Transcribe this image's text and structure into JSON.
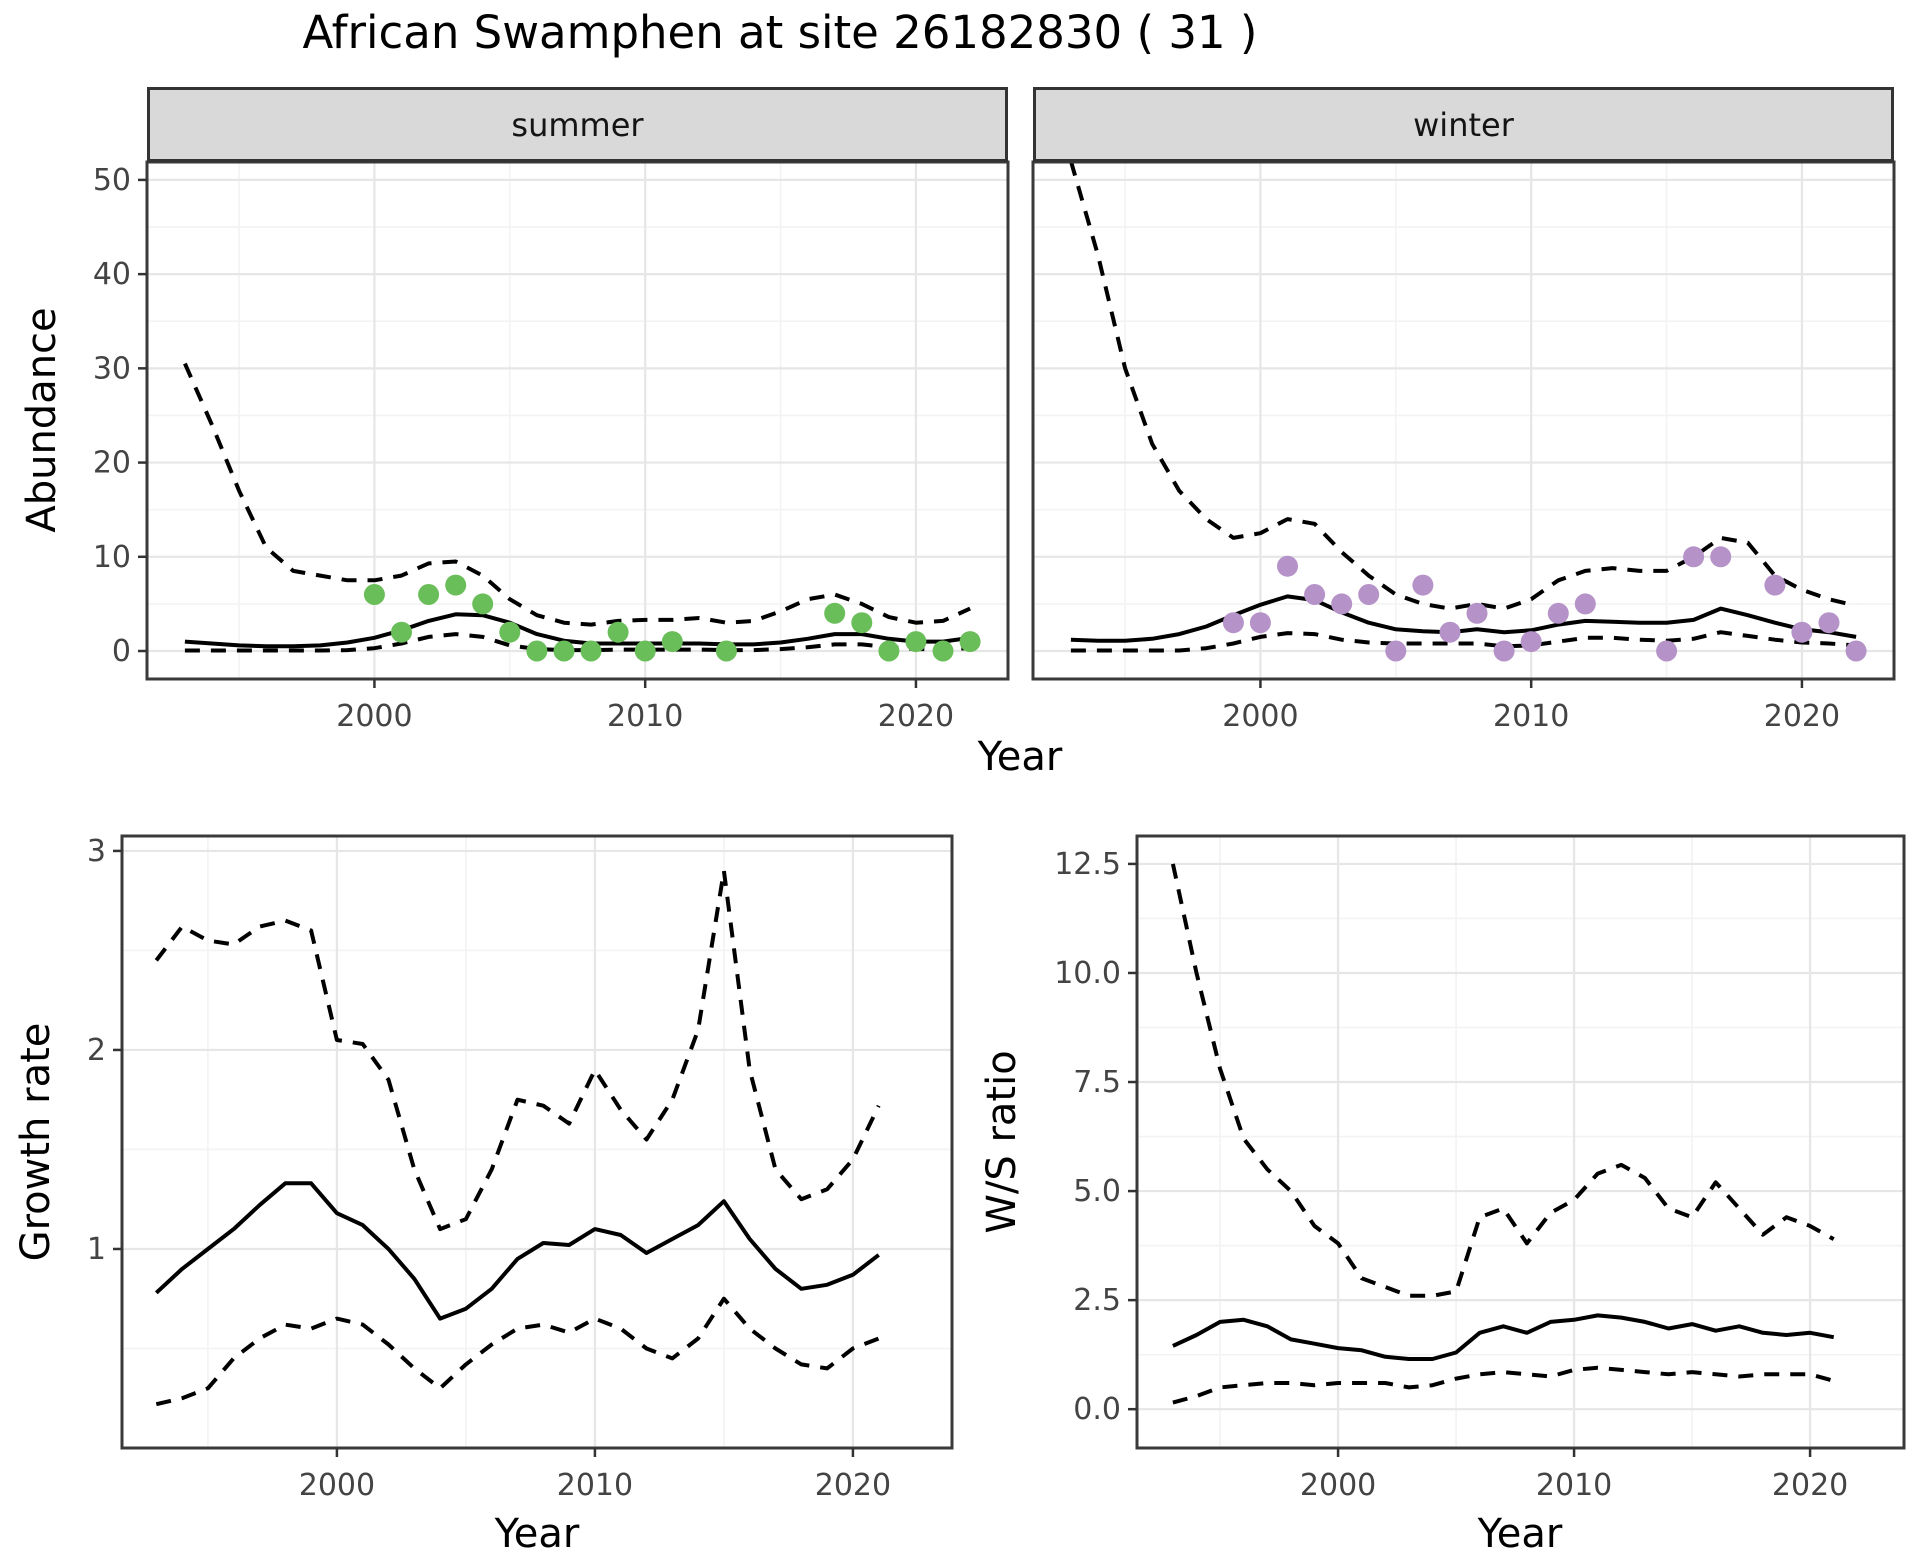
{
  "figure": {
    "title": "African Swamphen at site 26182830 ( 31 )"
  },
  "top_figure": {
    "ylabel": "Abundance",
    "xlabel": "Year",
    "facet_labels": {
      "summer": "summer",
      "winter": "winter"
    }
  },
  "bottom_figures": {
    "growth": {
      "ylabel": "Growth rate",
      "xlabel": "Year"
    },
    "ratio": {
      "ylabel": "W/S ratio",
      "xlabel": "Year"
    }
  },
  "style": {
    "summer_point_color": "#6abe59",
    "winter_point_color": "#b592c8",
    "line_color": "#000000",
    "strip_bg": "#d9d9d9",
    "panel_border": "#3a3a3a",
    "grid_major": "#e6e6e6",
    "grid_minor": "#f3f3f3",
    "tick_color": "#333333",
    "tick_label_color": "#444444"
  },
  "chart_data": [
    {
      "id": "abundance-summer",
      "type": "line+scatter",
      "facet": "summer",
      "xlabel": "Year",
      "ylabel": "Abundance",
      "xlim": [
        1991.6,
        2023.4
      ],
      "ylim": [
        -2.97,
        51.9
      ],
      "x_ticks": {
        "values": [
          2000,
          2010,
          2020
        ],
        "labels": [
          "2000",
          "2010",
          "2020"
        ]
      },
      "x_minor": [
        1995,
        2005,
        2015
      ],
      "y_ticks": {
        "values": [
          0,
          10,
          20,
          30,
          40,
          50
        ],
        "labels": [
          "0",
          "10",
          "20",
          "30",
          "40",
          "50"
        ]
      },
      "y_minor": [
        5,
        15,
        25,
        35,
        45
      ],
      "years": [
        1993,
        1994,
        1995,
        1996,
        1997,
        1998,
        1999,
        2000,
        2001,
        2002,
        2003,
        2004,
        2005,
        2006,
        2007,
        2008,
        2009,
        2010,
        2011,
        2012,
        2013,
        2014,
        2015,
        2016,
        2017,
        2018,
        2019,
        2020,
        2021,
        2022
      ],
      "series": [
        {
          "name": "fit",
          "style": "solid",
          "y": [
            1.0,
            0.8,
            0.6,
            0.5,
            0.5,
            0.6,
            0.9,
            1.4,
            2.2,
            3.2,
            3.9,
            3.8,
            3.0,
            1.8,
            1.1,
            0.8,
            0.8,
            0.8,
            0.8,
            0.8,
            0.7,
            0.7,
            0.9,
            1.3,
            1.8,
            1.8,
            1.3,
            1.0,
            1.0,
            1.4
          ]
        },
        {
          "name": "upper-ci",
          "style": "dashed",
          "y": [
            30.5,
            24,
            17,
            11,
            8.5,
            8,
            7.5,
            7.5,
            8,
            9.3,
            9.5,
            8,
            5.5,
            3.8,
            3,
            2.8,
            3.2,
            3.3,
            3.3,
            3.5,
            3,
            3.2,
            4.2,
            5.5,
            6,
            5,
            3.6,
            3,
            3.2,
            4.5
          ]
        },
        {
          "name": "lower-ci",
          "style": "dashed",
          "y": [
            0.05,
            0.05,
            0.05,
            0.05,
            0.05,
            0.05,
            0.1,
            0.3,
            0.8,
            1.5,
            1.8,
            1.5,
            0.6,
            0.2,
            0.1,
            0.1,
            0.15,
            0.15,
            0.15,
            0.15,
            0.1,
            0.1,
            0.2,
            0.4,
            0.7,
            0.7,
            0.4,
            0.2,
            0.2,
            0.3
          ]
        }
      ],
      "points": {
        "name": "observed-abundance-summer",
        "color_key": "summer_point_color",
        "x": [
          2000,
          2001,
          2002,
          2003,
          2004,
          2005,
          2006,
          2007,
          2008,
          2009,
          2010,
          2011,
          2013,
          2017,
          2018,
          2019,
          2020,
          2021,
          2022
        ],
        "y": [
          6,
          2,
          6,
          7,
          5,
          2,
          0,
          0,
          0,
          2,
          0,
          1,
          0,
          4,
          3,
          0,
          1,
          0,
          1
        ]
      }
    },
    {
      "id": "abundance-winter",
      "type": "line+scatter",
      "facet": "winter",
      "xlabel": "Year",
      "ylabel": "Abundance",
      "xlim": [
        1991.6,
        2023.4
      ],
      "ylim": [
        -2.97,
        51.9
      ],
      "x_ticks": {
        "values": [
          2000,
          2010,
          2020
        ],
        "labels": [
          "2000",
          "2010",
          "2020"
        ]
      },
      "x_minor": [
        1995,
        2005,
        2015
      ],
      "y_ticks": {
        "values": [
          0,
          10,
          20,
          30,
          40,
          50
        ],
        "labels": [
          "0",
          "10",
          "20",
          "30",
          "40",
          "50"
        ]
      },
      "y_minor": [
        5,
        15,
        25,
        35,
        45
      ],
      "years": [
        1993,
        1994,
        1995,
        1996,
        1997,
        1998,
        1999,
        2000,
        2001,
        2002,
        2003,
        2004,
        2005,
        2006,
        2007,
        2008,
        2009,
        2010,
        2011,
        2012,
        2013,
        2014,
        2015,
        2016,
        2017,
        2018,
        2019,
        2020,
        2021,
        2022
      ],
      "series": [
        {
          "name": "fit",
          "style": "solid",
          "y": [
            1.2,
            1.1,
            1.1,
            1.3,
            1.8,
            2.6,
            3.8,
            4.9,
            5.8,
            5.4,
            4.1,
            3.0,
            2.3,
            2.1,
            2.0,
            2.3,
            2.0,
            2.2,
            2.8,
            3.2,
            3.1,
            3.0,
            3.0,
            3.3,
            4.5,
            3.8,
            3.0,
            2.3,
            2.0,
            1.5
          ]
        },
        {
          "name": "upper-ci",
          "style": "dashed",
          "y": [
            52,
            42,
            30,
            22,
            17,
            14,
            12,
            12.5,
            14,
            13.5,
            10.5,
            8,
            6,
            5,
            4.5,
            5,
            4.5,
            5.5,
            7.5,
            8.5,
            8.8,
            8.5,
            8.5,
            10,
            12,
            11.5,
            8,
            6.5,
            5.5,
            4.8
          ]
        },
        {
          "name": "lower-ci",
          "style": "dashed",
          "y": [
            0.05,
            0.05,
            0.05,
            0.05,
            0.05,
            0.3,
            0.8,
            1.5,
            1.9,
            1.8,
            1.2,
            0.9,
            0.8,
            0.8,
            0.8,
            0.8,
            0.5,
            0.6,
            1.0,
            1.4,
            1.4,
            1.2,
            1.1,
            1.3,
            2.0,
            1.6,
            1.2,
            0.9,
            0.8,
            0.6
          ]
        }
      ],
      "points": {
        "name": "observed-abundance-winter",
        "color_key": "winter_point_color",
        "x": [
          1999,
          2000,
          2001,
          2002,
          2003,
          2004,
          2005,
          2006,
          2007,
          2008,
          2009,
          2010,
          2011,
          2012,
          2015,
          2016,
          2017,
          2019,
          2020,
          2021,
          2022
        ],
        "y": [
          3,
          3,
          9,
          6,
          5,
          6,
          0,
          7,
          2,
          4,
          0,
          1,
          4,
          5,
          0,
          10,
          10,
          7,
          2,
          3,
          0
        ]
      }
    },
    {
      "id": "growth-rate",
      "type": "line",
      "facet": "",
      "xlabel": "Year",
      "ylabel": "Growth rate",
      "xlim": [
        1991.67,
        2023.84
      ],
      "ylim": [
        0,
        3.075
      ],
      "x_ticks": {
        "values": [
          2000,
          2010,
          2020
        ],
        "labels": [
          "2000",
          "2010",
          "2020"
        ]
      },
      "x_minor": [
        1995,
        2005,
        2015
      ],
      "y_ticks": {
        "values": [
          1,
          2,
          3
        ],
        "labels": [
          "1",
          "2",
          "3"
        ]
      },
      "y_minor": [
        0.5,
        1.5,
        2.5
      ],
      "years": [
        1993,
        1994,
        1995,
        1996,
        1997,
        1998,
        1999,
        2000,
        2001,
        2002,
        2003,
        2004,
        2005,
        2006,
        2007,
        2008,
        2009,
        2010,
        2011,
        2012,
        2013,
        2014,
        2015,
        2016,
        2017,
        2018,
        2019,
        2020,
        2021
      ],
      "series": [
        {
          "name": "fit",
          "style": "solid",
          "y": [
            0.78,
            0.9,
            1.0,
            1.1,
            1.22,
            1.33,
            1.33,
            1.18,
            1.12,
            1.0,
            0.85,
            0.65,
            0.7,
            0.8,
            0.95,
            1.03,
            1.02,
            1.1,
            1.07,
            0.98,
            1.05,
            1.12,
            1.24,
            1.05,
            0.9,
            0.8,
            0.82,
            0.87,
            0.97
          ]
        },
        {
          "name": "upper-ci",
          "style": "dashed",
          "y": [
            2.45,
            2.62,
            2.55,
            2.53,
            2.62,
            2.65,
            2.6,
            2.05,
            2.03,
            1.85,
            1.4,
            1.1,
            1.15,
            1.4,
            1.75,
            1.72,
            1.63,
            1.9,
            1.7,
            1.55,
            1.75,
            2.1,
            2.9,
            1.9,
            1.4,
            1.25,
            1.3,
            1.45,
            1.72
          ]
        },
        {
          "name": "lower-ci",
          "style": "dashed",
          "y": [
            0.22,
            0.25,
            0.3,
            0.45,
            0.55,
            0.62,
            0.6,
            0.65,
            0.62,
            0.52,
            0.4,
            0.3,
            0.42,
            0.52,
            0.6,
            0.62,
            0.58,
            0.65,
            0.6,
            0.5,
            0.45,
            0.55,
            0.75,
            0.6,
            0.5,
            0.42,
            0.4,
            0.5,
            0.55
          ]
        }
      ],
      "points": null
    },
    {
      "id": "ws-ratio",
      "type": "line",
      "facet": "",
      "xlabel": "Year",
      "ylabel": "W/S ratio",
      "xlim": [
        1991.48,
        2023.98
      ],
      "ylim": [
        -0.89,
        13.14
      ],
      "x_ticks": {
        "values": [
          2000,
          2010,
          2020
        ],
        "labels": [
          "2000",
          "2010",
          "2020"
        ]
      },
      "x_minor": [
        1995,
        2005,
        2015
      ],
      "y_ticks": {
        "values": [
          0,
          2.5,
          5,
          7.5,
          10,
          12.5
        ],
        "labels": [
          "0.0",
          "2.5",
          "5.0",
          "7.5",
          "10.0",
          "12.5"
        ]
      },
      "y_minor": [
        1.25,
        3.75,
        6.25,
        8.75,
        11.25
      ],
      "years": [
        1993,
        1994,
        1995,
        1996,
        1997,
        1998,
        1999,
        2000,
        2001,
        2002,
        2003,
        2004,
        2005,
        2006,
        2007,
        2008,
        2009,
        2010,
        2011,
        2012,
        2013,
        2014,
        2015,
        2016,
        2017,
        2018,
        2019,
        2020,
        2021
      ],
      "series": [
        {
          "name": "fit",
          "style": "solid",
          "y": [
            1.45,
            1.7,
            2.0,
            2.05,
            1.9,
            1.6,
            1.5,
            1.4,
            1.35,
            1.2,
            1.15,
            1.15,
            1.3,
            1.75,
            1.9,
            1.75,
            2.0,
            2.05,
            2.15,
            2.1,
            2.0,
            1.85,
            1.95,
            1.8,
            1.9,
            1.75,
            1.7,
            1.75,
            1.65
          ]
        },
        {
          "name": "upper-ci",
          "style": "dashed",
          "y": [
            12.5,
            10.0,
            7.8,
            6.2,
            5.5,
            5.0,
            4.2,
            3.8,
            3.0,
            2.8,
            2.6,
            2.6,
            2.7,
            4.4,
            4.6,
            3.8,
            4.5,
            4.8,
            5.4,
            5.6,
            5.3,
            4.6,
            4.4,
            5.2,
            4.6,
            4.0,
            4.4,
            4.2,
            3.9
          ]
        },
        {
          "name": "lower-ci",
          "style": "dashed",
          "y": [
            0.15,
            0.3,
            0.5,
            0.55,
            0.6,
            0.6,
            0.55,
            0.6,
            0.6,
            0.6,
            0.5,
            0.55,
            0.7,
            0.8,
            0.85,
            0.8,
            0.75,
            0.9,
            0.95,
            0.9,
            0.85,
            0.8,
            0.85,
            0.8,
            0.75,
            0.8,
            0.8,
            0.8,
            0.65
          ]
        }
      ],
      "points": null
    }
  ]
}
